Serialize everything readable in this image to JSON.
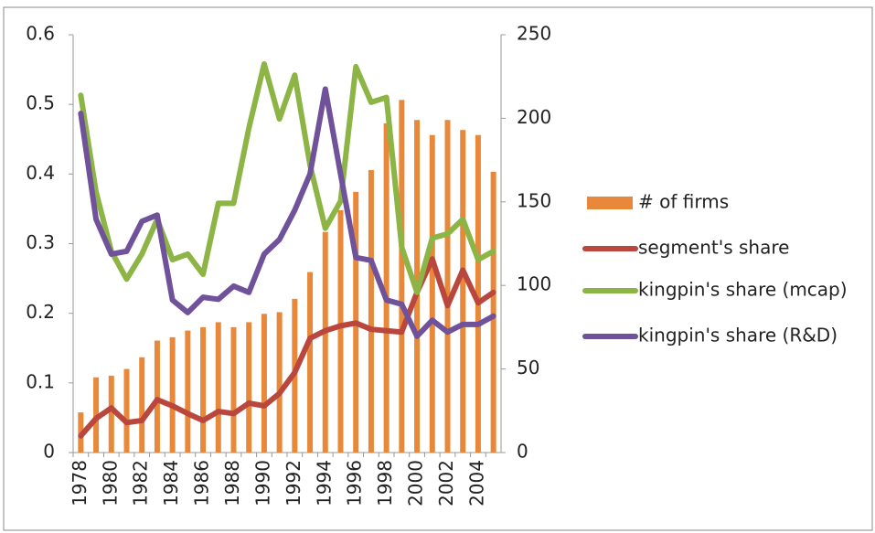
{
  "chart_data": {
    "type": "combo",
    "categories": [
      "1978",
      null,
      "1980",
      null,
      "1982",
      null,
      "1984",
      null,
      "1986",
      null,
      "1988",
      null,
      "1990",
      null,
      "1992",
      null,
      "1994",
      null,
      "1996",
      null,
      "1998",
      null,
      "2000",
      null,
      "2002",
      null,
      "2004",
      null
    ],
    "ylim": [
      0,
      0.6
    ],
    "yticks": [
      0,
      0.1,
      0.2,
      0.3,
      0.4,
      0.5,
      0.6
    ],
    "y2lim": [
      0,
      250
    ],
    "y2ticks": [
      0,
      50,
      100,
      150,
      200,
      250
    ],
    "legend": "right",
    "series": [
      {
        "name": "# of firms",
        "type": "bar",
        "axis": "y2",
        "color": "#e8883a",
        "values": [
          24,
          45,
          46,
          50,
          57,
          67,
          69,
          73,
          75,
          78,
          75,
          78,
          83,
          84,
          92,
          108,
          132,
          145,
          156,
          169,
          197,
          211,
          199,
          190,
          199,
          193,
          190,
          168
        ]
      },
      {
        "name": "segment's share",
        "type": "line",
        "color": "#b9473d",
        "values": [
          0.024,
          0.049,
          0.064,
          0.043,
          0.046,
          0.076,
          0.067,
          0.056,
          0.046,
          0.059,
          0.056,
          0.071,
          0.067,
          0.085,
          0.115,
          0.164,
          0.175,
          0.182,
          0.186,
          0.177,
          0.175,
          0.173,
          0.23,
          0.278,
          0.211,
          0.262,
          0.215,
          0.23
        ]
      },
      {
        "name": "kingpin's share (mcap)",
        "type": "line",
        "color": "#8db545",
        "values": [
          0.513,
          0.374,
          0.289,
          0.249,
          0.285,
          0.335,
          0.277,
          0.285,
          0.256,
          0.358,
          0.358,
          0.466,
          0.558,
          0.479,
          0.542,
          0.413,
          0.322,
          0.361,
          0.554,
          0.503,
          0.51,
          0.295,
          0.23,
          0.308,
          0.314,
          0.335,
          0.277,
          0.289
        ]
      },
      {
        "name": "kingpin's share (R&D)",
        "type": "line",
        "color": "#6f529a",
        "values": [
          0.487,
          0.335,
          0.285,
          0.289,
          0.332,
          0.341,
          0.219,
          0.201,
          0.223,
          0.22,
          0.239,
          0.23,
          0.285,
          0.306,
          0.348,
          0.4,
          0.522,
          0.4,
          0.28,
          0.276,
          0.219,
          0.213,
          0.167,
          0.19,
          0.173,
          0.184,
          0.184,
          0.196
        ]
      }
    ]
  }
}
